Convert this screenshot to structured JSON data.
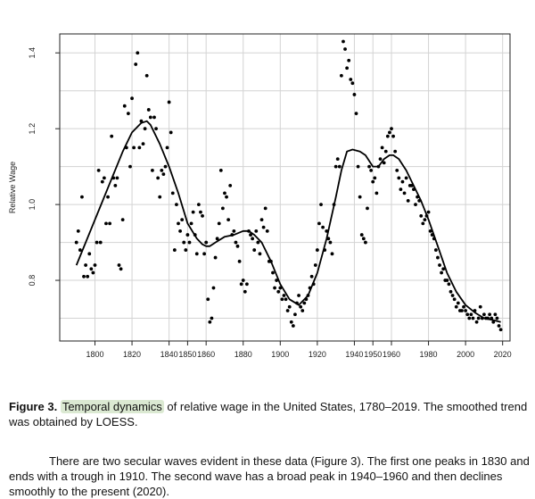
{
  "caption": {
    "label": "Figure 3.",
    "highlight": "Temporal dynamics",
    "text": " of relative wage in the United States, 1780–2019. The smoothed trend was obtained by LOESS."
  },
  "body_text": "There are two secular waves evident in these data (Figure 3). The first one peaks in 1830 and ends with a trough in 1910. The second wave has a broad peak in 1940–1960 and then declines smoothly to the present (2020).",
  "chart_data": {
    "type": "scatter",
    "ylabel": "Relative Wage",
    "xlim": [
      1781,
      2024
    ],
    "ylim": [
      0.64,
      1.45
    ],
    "x_ticks": [
      1800,
      1820,
      1840,
      1850,
      1860,
      1880,
      1900,
      1920,
      1940,
      1950,
      1960,
      1980,
      2000,
      2020
    ],
    "y_ticks": [
      0.8,
      1.0,
      1.2,
      1.4
    ],
    "grid": true,
    "point_color": "#000000",
    "series": [
      {
        "kind": "points",
        "points": [
          [
            1790,
            0.9
          ],
          [
            1791,
            0.93
          ],
          [
            1792,
            0.88
          ],
          [
            1793,
            1.02
          ],
          [
            1794,
            0.81
          ],
          [
            1795,
            0.84
          ],
          [
            1796,
            0.81
          ],
          [
            1797,
            0.87
          ],
          [
            1798,
            0.83
          ],
          [
            1799,
            0.82
          ],
          [
            1800,
            0.84
          ],
          [
            1801,
            0.9
          ],
          [
            1802,
            1.09
          ],
          [
            1803,
            0.9
          ],
          [
            1804,
            1.06
          ],
          [
            1805,
            1.07
          ],
          [
            1806,
            0.95
          ],
          [
            1807,
            1.02
          ],
          [
            1808,
            0.95
          ],
          [
            1809,
            1.18
          ],
          [
            1810,
            1.07
          ],
          [
            1811,
            1.05
          ],
          [
            1812,
            1.07
          ],
          [
            1813,
            0.84
          ],
          [
            1814,
            0.83
          ],
          [
            1815,
            0.96
          ],
          [
            1816,
            1.26
          ],
          [
            1817,
            1.15
          ],
          [
            1818,
            1.24
          ],
          [
            1819,
            1.1
          ],
          [
            1820,
            1.28
          ],
          [
            1821,
            1.15
          ],
          [
            1822,
            1.37
          ],
          [
            1823,
            1.4
          ],
          [
            1824,
            1.15
          ],
          [
            1825,
            1.22
          ],
          [
            1826,
            1.16
          ],
          [
            1827,
            1.2
          ],
          [
            1828,
            1.34
          ],
          [
            1829,
            1.25
          ],
          [
            1830,
            1.23
          ],
          [
            1831,
            1.09
          ],
          [
            1832,
            1.23
          ],
          [
            1833,
            1.2
          ],
          [
            1834,
            1.07
          ],
          [
            1835,
            1.02
          ],
          [
            1836,
            1.09
          ],
          [
            1837,
            1.08
          ],
          [
            1838,
            1.1
          ],
          [
            1839,
            1.15
          ],
          [
            1840,
            1.27
          ],
          [
            1841,
            1.19
          ],
          [
            1842,
            1.03
          ],
          [
            1843,
            0.88
          ],
          [
            1844,
            1.0
          ],
          [
            1845,
            0.95
          ],
          [
            1846,
            0.93
          ],
          [
            1847,
            0.96
          ],
          [
            1848,
            0.9
          ],
          [
            1849,
            0.88
          ],
          [
            1850,
            0.92
          ],
          [
            1851,
            0.9
          ],
          [
            1852,
            0.95
          ],
          [
            1853,
            0.98
          ],
          [
            1854,
            0.92
          ],
          [
            1855,
            0.87
          ],
          [
            1856,
            1.0
          ],
          [
            1857,
            0.98
          ],
          [
            1858,
            0.97
          ],
          [
            1859,
            0.87
          ],
          [
            1860,
            0.9
          ],
          [
            1861,
            0.75
          ],
          [
            1862,
            0.69
          ],
          [
            1863,
            0.7
          ],
          [
            1864,
            0.78
          ],
          [
            1865,
            0.86
          ],
          [
            1866,
            0.91
          ],
          [
            1867,
            0.95
          ],
          [
            1868,
            1.09
          ],
          [
            1869,
            0.99
          ],
          [
            1870,
            1.03
          ],
          [
            1871,
            1.02
          ],
          [
            1872,
            0.96
          ],
          [
            1873,
            1.05
          ],
          [
            1874,
            0.92
          ],
          [
            1875,
            0.93
          ],
          [
            1876,
            0.9
          ],
          [
            1877,
            0.89
          ],
          [
            1878,
            0.85
          ],
          [
            1879,
            0.79
          ],
          [
            1880,
            0.8
          ],
          [
            1881,
            0.77
          ],
          [
            1882,
            0.79
          ],
          [
            1883,
            0.93
          ],
          [
            1884,
            0.92
          ],
          [
            1885,
            0.91
          ],
          [
            1886,
            0.88
          ],
          [
            1887,
            0.93
          ],
          [
            1888,
            0.9
          ],
          [
            1889,
            0.87
          ],
          [
            1890,
            0.96
          ],
          [
            1891,
            0.94
          ],
          [
            1892,
            0.99
          ],
          [
            1893,
            0.93
          ],
          [
            1894,
            0.85
          ],
          [
            1895,
            0.85
          ],
          [
            1896,
            0.82
          ],
          [
            1897,
            0.78
          ],
          [
            1898,
            0.8
          ],
          [
            1899,
            0.77
          ],
          [
            1900,
            0.78
          ],
          [
            1901,
            0.75
          ],
          [
            1902,
            0.76
          ],
          [
            1903,
            0.75
          ],
          [
            1904,
            0.72
          ],
          [
            1905,
            0.73
          ],
          [
            1906,
            0.69
          ],
          [
            1907,
            0.68
          ],
          [
            1908,
            0.71
          ],
          [
            1909,
            0.74
          ],
          [
            1910,
            0.76
          ],
          [
            1911,
            0.73
          ],
          [
            1912,
            0.72
          ],
          [
            1913,
            0.74
          ],
          [
            1914,
            0.75
          ],
          [
            1915,
            0.76
          ],
          [
            1916,
            0.78
          ],
          [
            1917,
            0.81
          ],
          [
            1918,
            0.79
          ],
          [
            1919,
            0.84
          ],
          [
            1920,
            0.88
          ],
          [
            1921,
            0.95
          ],
          [
            1922,
            1.0
          ],
          [
            1923,
            0.94
          ],
          [
            1924,
            0.88
          ],
          [
            1925,
            0.93
          ],
          [
            1926,
            0.91
          ],
          [
            1927,
            0.9
          ],
          [
            1928,
            0.87
          ],
          [
            1929,
            1.0
          ],
          [
            1930,
            1.1
          ],
          [
            1931,
            1.12
          ],
          [
            1932,
            1.1
          ],
          [
            1933,
            1.34
          ],
          [
            1934,
            1.43
          ],
          [
            1935,
            1.41
          ],
          [
            1936,
            1.36
          ],
          [
            1937,
            1.38
          ],
          [
            1938,
            1.33
          ],
          [
            1939,
            1.32
          ],
          [
            1940,
            1.29
          ],
          [
            1941,
            1.24
          ],
          [
            1942,
            1.1
          ],
          [
            1943,
            1.02
          ],
          [
            1944,
            0.92
          ],
          [
            1945,
            0.91
          ],
          [
            1946,
            0.9
          ],
          [
            1947,
            0.99
          ],
          [
            1948,
            1.1
          ],
          [
            1949,
            1.09
          ],
          [
            1950,
            1.06
          ],
          [
            1951,
            1.07
          ],
          [
            1952,
            1.03
          ],
          [
            1953,
            1.1
          ],
          [
            1954,
            1.12
          ],
          [
            1955,
            1.15
          ],
          [
            1956,
            1.11
          ],
          [
            1957,
            1.14
          ],
          [
            1958,
            1.18
          ],
          [
            1959,
            1.19
          ],
          [
            1960,
            1.2
          ],
          [
            1961,
            1.18
          ],
          [
            1962,
            1.14
          ],
          [
            1963,
            1.09
          ],
          [
            1964,
            1.07
          ],
          [
            1965,
            1.04
          ],
          [
            1966,
            1.06
          ],
          [
            1967,
            1.03
          ],
          [
            1968,
            1.07
          ],
          [
            1969,
            1.01
          ],
          [
            1970,
            1.05
          ],
          [
            1971,
            1.05
          ],
          [
            1972,
            1.04
          ],
          [
            1973,
            1.0
          ],
          [
            1974,
            1.02
          ],
          [
            1975,
            1.01
          ],
          [
            1976,
            0.97
          ],
          [
            1977,
            0.95
          ],
          [
            1978,
            0.96
          ],
          [
            1979,
            0.97
          ],
          [
            1980,
            0.98
          ],
          [
            1981,
            0.93
          ],
          [
            1982,
            0.92
          ],
          [
            1983,
            0.91
          ],
          [
            1984,
            0.88
          ],
          [
            1985,
            0.86
          ],
          [
            1986,
            0.84
          ],
          [
            1987,
            0.82
          ],
          [
            1988,
            0.83
          ],
          [
            1989,
            0.8
          ],
          [
            1990,
            0.8
          ],
          [
            1991,
            0.79
          ],
          [
            1992,
            0.77
          ],
          [
            1993,
            0.76
          ],
          [
            1994,
            0.75
          ],
          [
            1995,
            0.73
          ],
          [
            1996,
            0.74
          ],
          [
            1997,
            0.72
          ],
          [
            1998,
            0.72
          ],
          [
            1999,
            0.73
          ],
          [
            2000,
            0.72
          ],
          [
            2001,
            0.71
          ],
          [
            2002,
            0.7
          ],
          [
            2003,
            0.71
          ],
          [
            2004,
            0.7
          ],
          [
            2005,
            0.72
          ],
          [
            2006,
            0.69
          ],
          [
            2007,
            0.7
          ],
          [
            2008,
            0.73
          ],
          [
            2009,
            0.7
          ],
          [
            2010,
            0.71
          ],
          [
            2011,
            0.7
          ],
          [
            2012,
            0.7
          ],
          [
            2013,
            0.71
          ],
          [
            2014,
            0.7
          ],
          [
            2015,
            0.69
          ],
          [
            2016,
            0.71
          ],
          [
            2017,
            0.7
          ],
          [
            2018,
            0.68
          ],
          [
            2019,
            0.67
          ]
        ]
      },
      {
        "kind": "loess-trend",
        "points": [
          [
            1790,
            0.84
          ],
          [
            1795,
            0.9
          ],
          [
            1800,
            0.96
          ],
          [
            1805,
            1.02
          ],
          [
            1810,
            1.08
          ],
          [
            1815,
            1.14
          ],
          [
            1820,
            1.19
          ],
          [
            1825,
            1.215
          ],
          [
            1828,
            1.22
          ],
          [
            1830,
            1.21
          ],
          [
            1835,
            1.16
          ],
          [
            1840,
            1.1
          ],
          [
            1845,
            1.03
          ],
          [
            1850,
            0.95
          ],
          [
            1855,
            0.91
          ],
          [
            1858,
            0.895
          ],
          [
            1860,
            0.89
          ],
          [
            1862,
            0.89
          ],
          [
            1865,
            0.9
          ],
          [
            1870,
            0.915
          ],
          [
            1875,
            0.92
          ],
          [
            1880,
            0.93
          ],
          [
            1883,
            0.93
          ],
          [
            1886,
            0.92
          ],
          [
            1890,
            0.9
          ],
          [
            1895,
            0.85
          ],
          [
            1900,
            0.79
          ],
          [
            1905,
            0.75
          ],
          [
            1910,
            0.735
          ],
          [
            1915,
            0.76
          ],
          [
            1920,
            0.82
          ],
          [
            1925,
            0.91
          ],
          [
            1930,
            1.02
          ],
          [
            1933,
            1.09
          ],
          [
            1936,
            1.14
          ],
          [
            1939,
            1.145
          ],
          [
            1943,
            1.14
          ],
          [
            1946,
            1.13
          ],
          [
            1950,
            1.1
          ],
          [
            1953,
            1.1
          ],
          [
            1956,
            1.12
          ],
          [
            1959,
            1.13
          ],
          [
            1961,
            1.13
          ],
          [
            1964,
            1.12
          ],
          [
            1968,
            1.09
          ],
          [
            1972,
            1.05
          ],
          [
            1976,
            1.01
          ],
          [
            1980,
            0.96
          ],
          [
            1985,
            0.89
          ],
          [
            1990,
            0.82
          ],
          [
            1995,
            0.77
          ],
          [
            2000,
            0.735
          ],
          [
            2005,
            0.715
          ],
          [
            2010,
            0.7
          ],
          [
            2015,
            0.695
          ],
          [
            2019,
            0.69
          ]
        ]
      }
    ]
  }
}
